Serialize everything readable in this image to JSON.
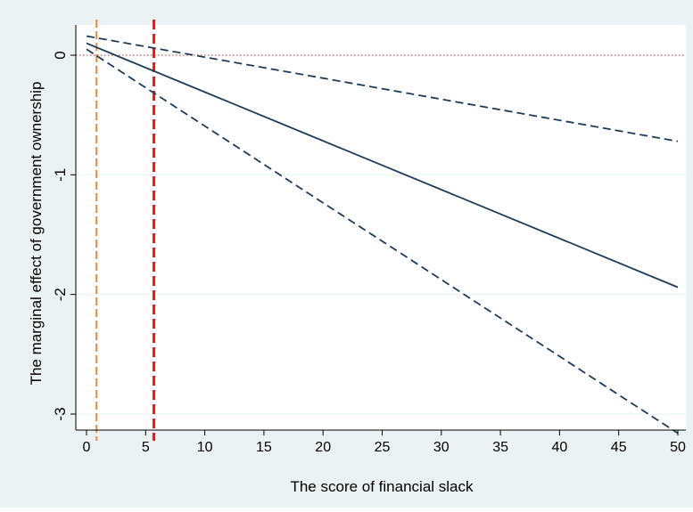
{
  "chart_data": {
    "type": "line",
    "title": "",
    "xlabel": "The score of financial slack",
    "ylabel": "The marginal effect of government ownership",
    "xlim": [
      -1,
      51
    ],
    "ylim": [
      -3.2,
      0.28
    ],
    "x_ticks": [
      0,
      5,
      10,
      15,
      20,
      25,
      30,
      35,
      40,
      45,
      50
    ],
    "y_ticks": [
      0,
      -1,
      -2,
      -3
    ],
    "x_tick_labels": [
      "0",
      "5",
      "10",
      "15",
      "20",
      "25",
      "30",
      "35",
      "40",
      "45",
      "50"
    ],
    "y_tick_labels": [
      "0",
      "-1",
      "-2",
      "-3"
    ],
    "grid": true,
    "legend": "none",
    "series": [
      {
        "key": "marginal-effect",
        "style": "solid",
        "color": "#1f3b5a",
        "x": [
          0,
          50
        ],
        "y": [
          0.1,
          -1.94
        ]
      },
      {
        "key": "upper-ci",
        "style": "dashed",
        "color": "#1f3b5a",
        "x": [
          0,
          50
        ],
        "y": [
          0.16,
          -0.72
        ]
      },
      {
        "key": "lower-ci",
        "style": "dashed",
        "color": "#1f3b5a",
        "x": [
          0,
          50
        ],
        "y": [
          0.05,
          -3.16
        ]
      }
    ],
    "reference_lines": [
      {
        "key": "zero-line",
        "axis": "y",
        "value": 0,
        "style": "dotted",
        "color": "#d9534f"
      },
      {
        "key": "orange-vline",
        "axis": "x",
        "value": 0.85,
        "style": "dashed",
        "color": "#e8883a"
      },
      {
        "key": "red-vline",
        "axis": "x",
        "value": 5.7,
        "style": "dashed",
        "color": "#e41a1c"
      }
    ]
  },
  "colors": {
    "outer_background": "#eaf2f3",
    "plot_background": "#ffffff",
    "grid": "#eaf2f3",
    "axis": "#000000"
  }
}
